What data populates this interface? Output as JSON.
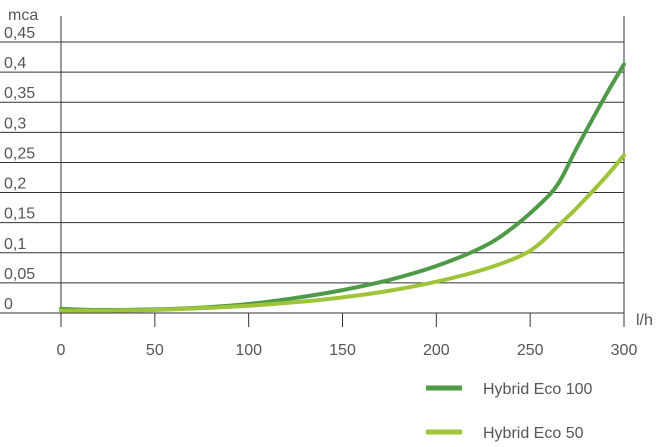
{
  "chart_data": {
    "type": "line",
    "xlabel": "l/h",
    "ylabel": "mca",
    "xlim": [
      0,
      300
    ],
    "ylim": [
      0,
      0.45
    ],
    "x_ticks": [
      0,
      50,
      100,
      150,
      200,
      250,
      300
    ],
    "x_tick_labels": [
      "0",
      "50",
      "100",
      "150",
      "200",
      "250",
      "300"
    ],
    "y_ticks": [
      0,
      0.05,
      0.1,
      0.15,
      0.2,
      0.25,
      0.3,
      0.35,
      0.4,
      0.45
    ],
    "y_tick_labels": [
      "0",
      "0,05",
      "0,1",
      "0,15",
      "0,2",
      "0,25",
      "0,3",
      "0,35",
      "0,4",
      "0,45"
    ],
    "grid": "horizontal",
    "legend_position": "bottom-right",
    "series": [
      {
        "name": "Hybrid Eco 100",
        "color": "#4e9a46",
        "points": [
          [
            0,
            0.007
          ],
          [
            20,
            0.005
          ],
          [
            50,
            0.006
          ],
          [
            75,
            0.009
          ],
          [
            100,
            0.015
          ],
          [
            125,
            0.025
          ],
          [
            150,
            0.038
          ],
          [
            175,
            0.055
          ],
          [
            200,
            0.078
          ],
          [
            225,
            0.11
          ],
          [
            240,
            0.14
          ],
          [
            255,
            0.18
          ],
          [
            265,
            0.215
          ],
          [
            275,
            0.275
          ],
          [
            290,
            0.36
          ],
          [
            300,
            0.413
          ]
        ]
      },
      {
        "name": "Hybrid Eco 50",
        "color": "#9ec43a",
        "points": [
          [
            0,
            0.004
          ],
          [
            25,
            0.004
          ],
          [
            50,
            0.005
          ],
          [
            75,
            0.008
          ],
          [
            100,
            0.012
          ],
          [
            125,
            0.018
          ],
          [
            150,
            0.026
          ],
          [
            175,
            0.037
          ],
          [
            200,
            0.052
          ],
          [
            225,
            0.072
          ],
          [
            245,
            0.095
          ],
          [
            255,
            0.115
          ],
          [
            265,
            0.145
          ],
          [
            275,
            0.175
          ],
          [
            290,
            0.225
          ],
          [
            300,
            0.262
          ]
        ]
      }
    ]
  }
}
